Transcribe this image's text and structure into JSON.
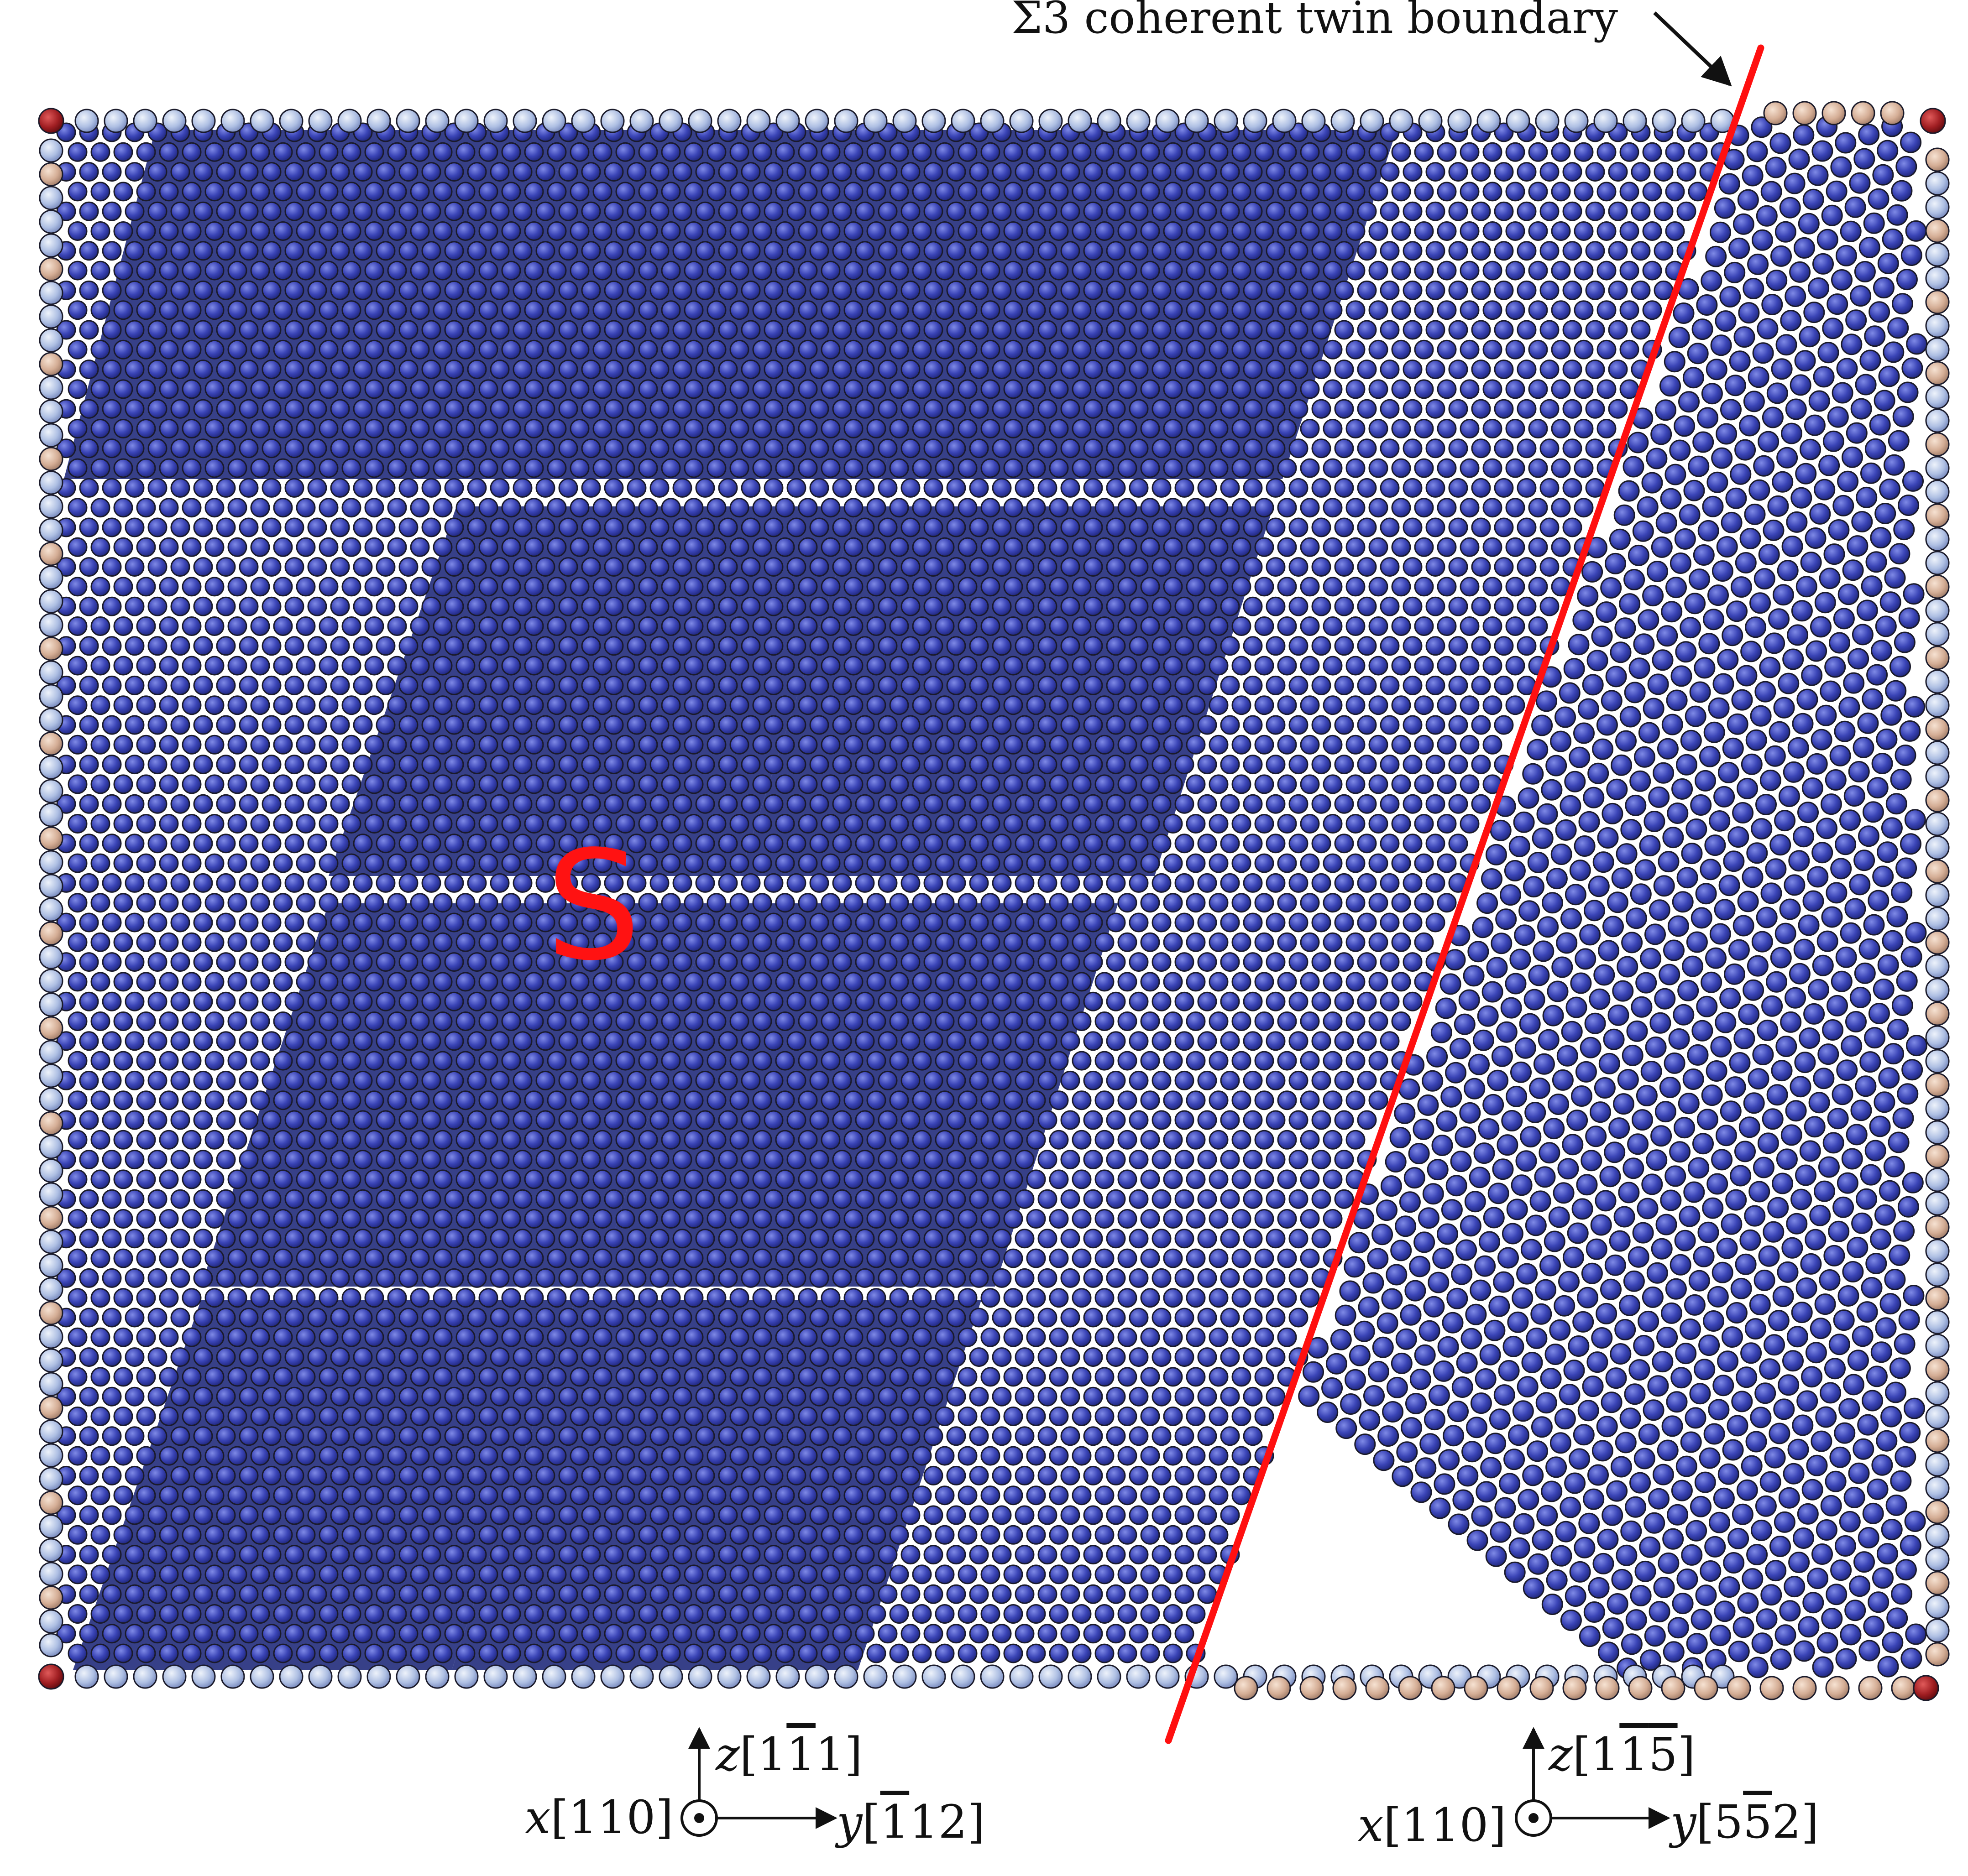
{
  "annotation": {
    "twin_boundary_label": "Σ3 coherent twin boundary",
    "region_label": "S"
  },
  "axes_left": {
    "x_label": "x",
    "x_dir": "[110]",
    "y_label": "y",
    "y_dir_pre": "[",
    "y_dir_bar": "1",
    "y_dir_post": "12]",
    "z_label": "z",
    "z_dir_pre": "[1",
    "z_dir_bar": "1",
    "z_dir_post": "1]"
  },
  "axes_right": {
    "x_label": "x",
    "x_dir": "[110]",
    "y_label": "y",
    "y_dir_pre": "[5",
    "y_dir_bar": "5",
    "y_dir_post": "2]",
    "z_label": "z",
    "z_dir_pre": "[1",
    "z_dir_bar": "1",
    "z_dir_mid": "",
    "z_dir_bar2": "5",
    "z_dir_post": "]"
  },
  "colors": {
    "atom_dark": "#232a8a",
    "atom_mid": "#3d45b4",
    "atom_light": "#b8c8e8",
    "atom_surface": "#d9b6a0",
    "atom_corner": "#9c1c22",
    "boundary_line": "#ff1010",
    "label_red": "#ff1212"
  }
}
